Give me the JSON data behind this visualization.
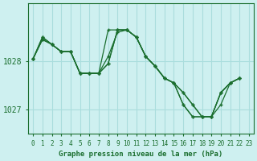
{
  "title": "Graphe pression niveau de la mer (hPa)",
  "background_color": "#cef0f0",
  "grid_color": "#aadddd",
  "line_color": "#1a6e2e",
  "marker_color": "#1a6e2e",
  "ylabel_ticks": [
    1027,
    1028
  ],
  "xlim": [
    -0.5,
    23.5
  ],
  "ylim": [
    1026.5,
    1029.2
  ],
  "series": [
    [
      1028.05,
      1028.5,
      1028.35,
      1028.2,
      1028.2,
      1027.75,
      1027.75,
      1027.75,
      1028.1,
      1028.6,
      1028.65,
      1028.5,
      1028.1,
      1027.9,
      1027.65,
      1027.55,
      1027.35,
      1027.1,
      1026.85,
      1026.85,
      1027.35,
      1027.55,
      1027.65
    ],
    [
      1028.05,
      1028.45,
      1028.35,
      1028.2,
      1028.2,
      1027.75,
      1027.75,
      1027.75,
      1028.65,
      1028.65,
      1028.65,
      1028.5,
      1028.1,
      1027.9,
      1027.65,
      1027.55,
      1027.1,
      1026.85,
      1026.85,
      1026.85,
      1027.35,
      1027.55,
      1027.65
    ],
    [
      1028.05,
      1028.45,
      1028.35,
      1028.2,
      1028.2,
      1027.75,
      1027.75,
      1027.75,
      1027.95,
      1028.65,
      1028.65,
      1028.5,
      1028.1,
      1027.9,
      1027.65,
      1027.55,
      1027.35,
      1027.1,
      1026.85,
      1026.85,
      1027.35,
      1027.55,
      1027.65
    ],
    [
      1028.05,
      1028.5,
      1028.35,
      1028.2,
      1028.2,
      1027.75,
      1027.75,
      1027.75,
      1027.95,
      1028.65,
      1028.65,
      1028.5,
      1028.1,
      1027.9,
      1027.65,
      1027.55,
      1027.1,
      1026.85,
      1026.85,
      1026.85,
      1027.1,
      1027.55,
      1027.65
    ]
  ],
  "x_labels": [
    "0",
    "1",
    "2",
    "3",
    "4",
    "5",
    "6",
    "7",
    "8",
    "9",
    "10",
    "11",
    "12",
    "13",
    "14",
    "15",
    "16",
    "17",
    "18",
    "19",
    "20",
    "21",
    "22",
    "23"
  ]
}
